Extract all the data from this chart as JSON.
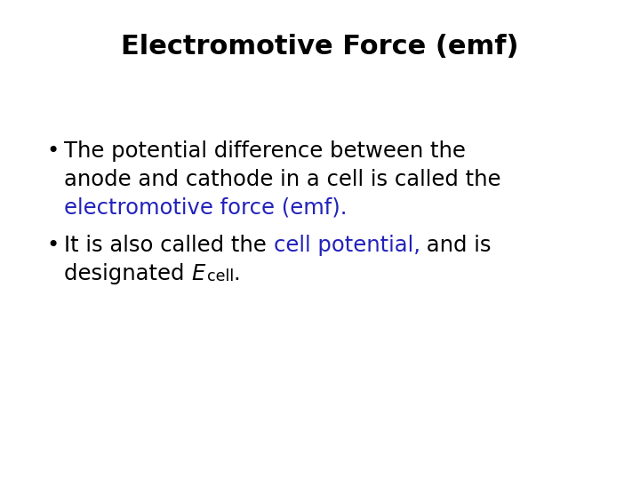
{
  "title": "Electromotive Force (emf)",
  "title_fontsize": 22,
  "title_fontweight": "bold",
  "title_color": "#000000",
  "background_color": "#ffffff",
  "bullet_color": "#000000",
  "highlight_color": "#2222bb",
  "body_fontsize": 17.5,
  "bullet1_line1": "The potential difference between the",
  "bullet1_line2": "anode and cathode in a cell is called the",
  "bullet1_line3": "electromotive force (emf).",
  "bullet2_line1_black1": "It is also called the ",
  "bullet2_line1_blue": "cell potential,",
  "bullet2_line1_black2": " and is",
  "bullet2_line2_pre": "designated ",
  "bullet_char": "•",
  "font_family": "DejaVu Sans"
}
